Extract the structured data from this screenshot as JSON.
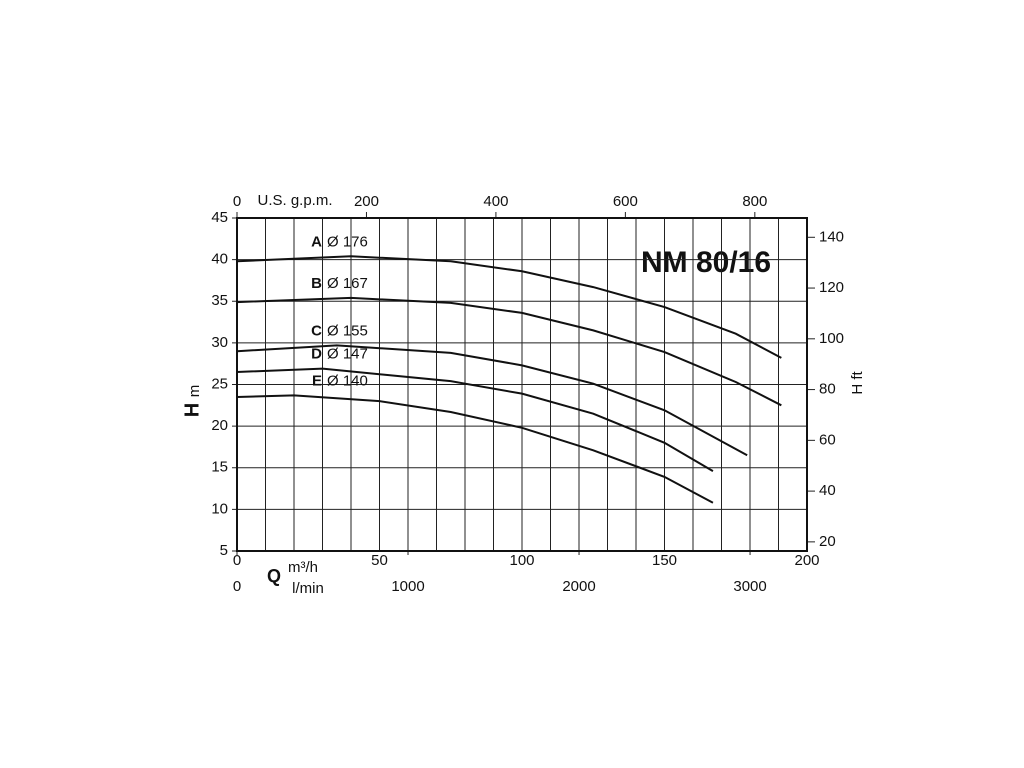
{
  "chart_data": {
    "type": "line",
    "title": "NM 80/16",
    "ylabel_symbol": "H",
    "ylabel_unit": "m",
    "y2label": "H ft",
    "xlabel_symbol": "Q",
    "xlabel_unit": "m³/h",
    "x2label": "l/min",
    "x3label": "U.S. g.p.m.",
    "xlim": [
      0,
      200
    ],
    "xticks": [
      0,
      50,
      100,
      150,
      200
    ],
    "xgrid": [
      0,
      10,
      20,
      30,
      40,
      50,
      60,
      70,
      80,
      90,
      100,
      110,
      120,
      130,
      140,
      150,
      160,
      170,
      180,
      190,
      200
    ],
    "ylim": [
      5,
      45
    ],
    "yticks": [
      5,
      10,
      15,
      20,
      25,
      30,
      35,
      40,
      45
    ],
    "y2lim": [
      16.4,
      147.6
    ],
    "y2ticks": [
      20,
      40,
      60,
      80,
      100,
      120,
      140
    ],
    "x2lim": [
      0,
      3333
    ],
    "x2ticks": [
      0,
      1000,
      2000,
      3000
    ],
    "x3lim": [
      0,
      880.6
    ],
    "x3ticks": [
      0,
      200,
      400,
      600,
      800
    ],
    "grid": true,
    "series": [
      {
        "name": "A",
        "diameter": "Ø 176",
        "color": "#111",
        "x": [
          0,
          40,
          75,
          100,
          125,
          150,
          175,
          191
        ],
        "values": [
          39.8,
          40.4,
          39.8,
          38.6,
          36.7,
          34.3,
          31.1,
          28.2
        ]
      },
      {
        "name": "B",
        "diameter": "Ø 167",
        "color": "#111",
        "x": [
          0,
          40,
          75,
          100,
          125,
          150,
          175,
          191
        ],
        "values": [
          34.9,
          35.4,
          34.8,
          33.6,
          31.5,
          28.9,
          25.3,
          22.5
        ]
      },
      {
        "name": "C",
        "diameter": "Ø 155",
        "color": "#111",
        "x": [
          0,
          35,
          75,
          100,
          125,
          150,
          179
        ],
        "values": [
          29.0,
          29.7,
          28.8,
          27.3,
          25.1,
          21.9,
          16.5
        ]
      },
      {
        "name": "D",
        "diameter": "Ø 147",
        "color": "#111",
        "x": [
          0,
          30,
          75,
          100,
          125,
          150,
          167
        ],
        "values": [
          26.5,
          26.9,
          25.4,
          23.9,
          21.5,
          18.0,
          14.6
        ]
      },
      {
        "name": "E",
        "diameter": "Ø 140",
        "color": "#111",
        "x": [
          0,
          20,
          50,
          75,
          100,
          125,
          150,
          167
        ],
        "values": [
          23.5,
          23.7,
          23.0,
          21.7,
          19.8,
          17.1,
          13.9,
          10.8
        ]
      }
    ]
  }
}
